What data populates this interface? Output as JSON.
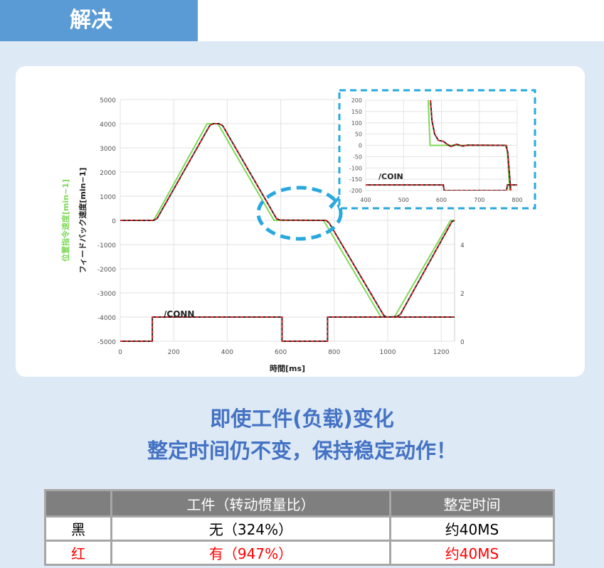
{
  "header": {
    "tab_label": "解决"
  },
  "headline": {
    "line1": "即使工件(负载)变化",
    "line2": "整定时间仍不变，保持稳定动作！"
  },
  "table": {
    "headers": [
      "",
      "工件（转动惯量比）",
      "整定时间"
    ],
    "rows": [
      [
        "黑",
        "无（324%）",
        "约40MS"
      ],
      [
        "红",
        "有（947%）",
        "约40MS"
      ]
    ]
  },
  "colors": {
    "command": "#7ed957",
    "feedback_black": "#222222",
    "feedback_red": "#ff2020",
    "highlight": "#29a8e0",
    "headline": "#4472c4"
  },
  "chart_data": [
    {
      "type": "line",
      "xlabel": "時間[ms]",
      "ylabel_command": "位置指令速度[min−1]",
      "ylabel_feedback": "フィードバック速度[min−1]",
      "xlim": [
        0,
        1250
      ],
      "ylim": [
        -5000,
        5000
      ],
      "y2lim": [
        0,
        10
      ],
      "xticks": [
        0,
        200,
        400,
        600,
        800,
        1000,
        1200
      ],
      "yticks": [
        5000,
        4000,
        3000,
        2000,
        1000,
        0,
        -1000,
        -2000,
        -3000,
        -4000,
        -5000
      ],
      "y2ticks": [
        0,
        2,
        4,
        6,
        8,
        10
      ],
      "grid": true,
      "annotation": "/CONN",
      "command": [
        [
          0,
          0
        ],
        [
          125,
          0
        ],
        [
          325,
          4000
        ],
        [
          365,
          4000
        ],
        [
          575,
          0
        ],
        [
          760,
          0
        ],
        [
          975,
          -4000
        ],
        [
          1025,
          -4000
        ],
        [
          1235,
          0
        ],
        [
          1250,
          0
        ]
      ],
      "feedback": [
        [
          0,
          0
        ],
        [
          125,
          0
        ],
        [
          138,
          80
        ],
        [
          335,
          3930
        ],
        [
          348,
          4000
        ],
        [
          370,
          4000
        ],
        [
          383,
          3920
        ],
        [
          585,
          60
        ],
        [
          600,
          10
        ],
        [
          770,
          0
        ],
        [
          782,
          -120
        ],
        [
          985,
          -3930
        ],
        [
          995,
          -4000
        ],
        [
          1035,
          -3980
        ],
        [
          1048,
          -3880
        ],
        [
          1240,
          -50
        ],
        [
          1250,
          0
        ]
      ],
      "conn_signal": [
        [
          0,
          0
        ],
        [
          120,
          0
        ],
        [
          120,
          1
        ],
        [
          605,
          1
        ],
        [
          605,
          0
        ],
        [
          775,
          0
        ],
        [
          775,
          1
        ],
        [
          1250,
          1
        ]
      ]
    },
    {
      "type": "line",
      "xlim": [
        400,
        800
      ],
      "ylim": [
        -200,
        200
      ],
      "xticks": [
        400,
        500,
        600,
        700,
        800
      ],
      "yticks": [
        200,
        150,
        100,
        50,
        0,
        -50,
        -100,
        -150,
        -200
      ],
      "grid": true,
      "annotation": "/COIN",
      "command": [
        [
          565,
          200
        ],
        [
          570,
          0
        ],
        [
          773,
          0
        ],
        [
          780,
          -200
        ]
      ],
      "feedback": [
        [
          571,
          200
        ],
        [
          575,
          110
        ],
        [
          582,
          50
        ],
        [
          592,
          22
        ],
        [
          605,
          18
        ],
        [
          615,
          5
        ],
        [
          625,
          -5
        ],
        [
          640,
          5
        ],
        [
          655,
          -3
        ],
        [
          670,
          1
        ],
        [
          770,
          0
        ],
        [
          775,
          -30
        ],
        [
          783,
          -200
        ]
      ],
      "coin_signal": [
        [
          400,
          -175
        ],
        [
          605,
          -175
        ],
        [
          607,
          -200
        ],
        [
          772,
          -200
        ],
        [
          774,
          -175
        ],
        [
          800,
          -175
        ]
      ]
    }
  ]
}
